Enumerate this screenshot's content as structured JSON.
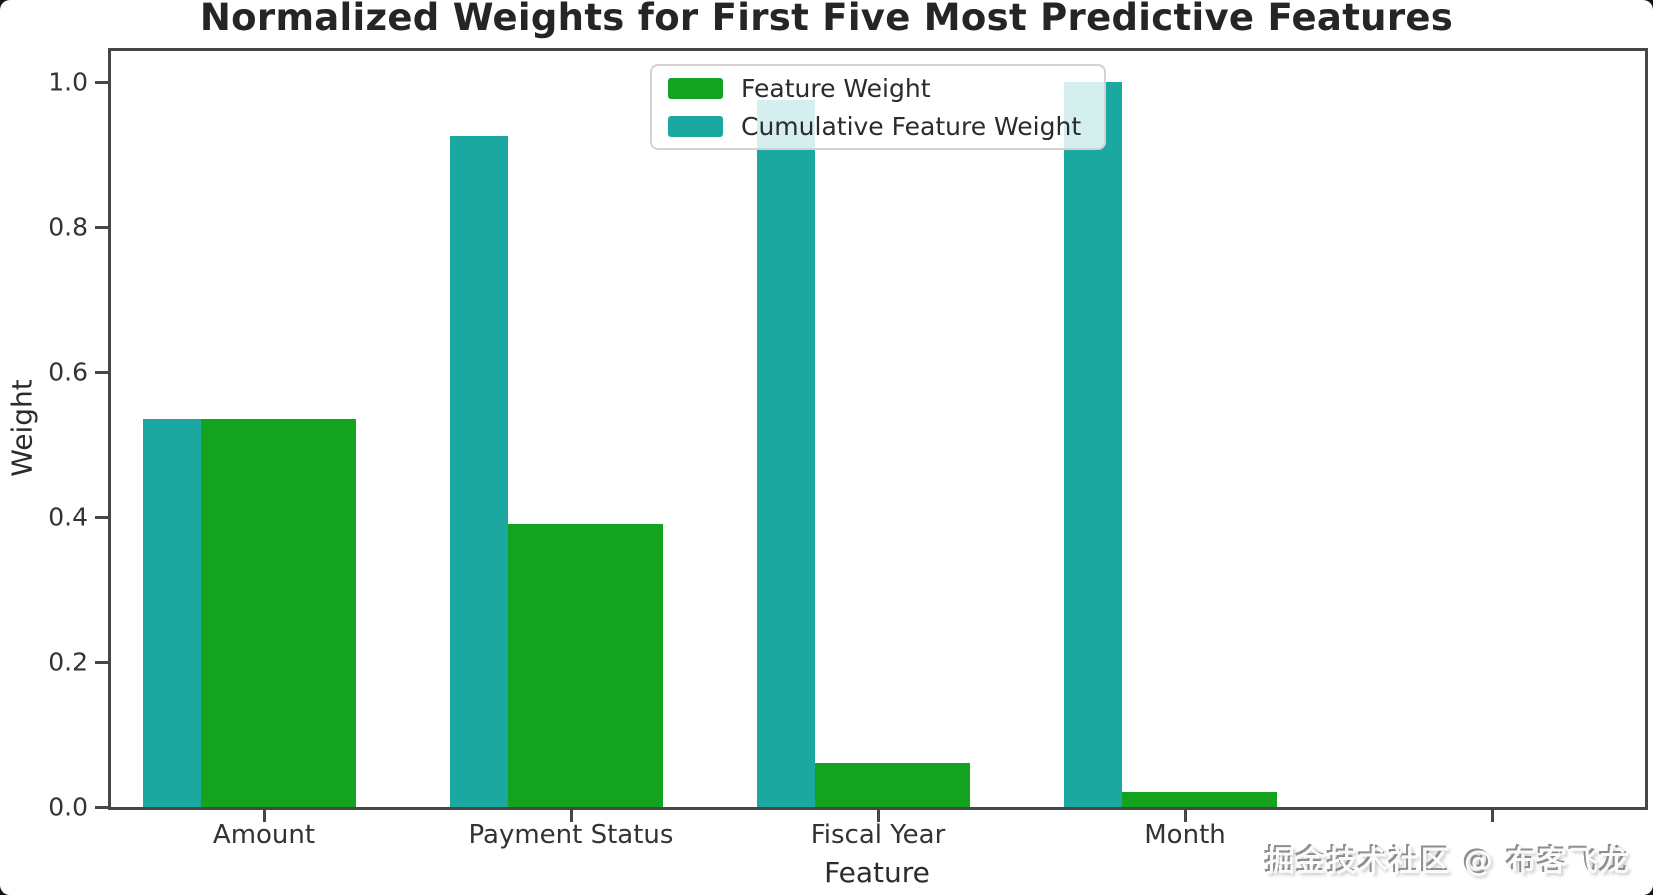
{
  "watermark": "掘金技术社区 @ 布客飞龙",
  "chart_data": {
    "type": "bar",
    "title": "Normalized Weights for First Five Most Predictive Features",
    "xlabel": "Feature",
    "ylabel": "Weight",
    "categories": [
      "Amount",
      "Payment Status",
      "Fiscal Year",
      "Month",
      ""
    ],
    "series": [
      {
        "name": "Feature Weight",
        "color": "#14a31e",
        "values": [
          0.535,
          0.39,
          0.06,
          0.02,
          0
        ]
      },
      {
        "name": "Cumulative Feature Weight",
        "color": "#1ba8a0",
        "values": [
          0.535,
          0.925,
          0.975,
          1.0,
          0
        ]
      }
    ],
    "ylim": [
      0.0,
      1.044
    ],
    "yticks": [
      0.0,
      0.2,
      0.4,
      0.6,
      0.8,
      1.0
    ],
    "ytick_labels": [
      "0.0",
      "0.2",
      "0.4",
      "0.6",
      "0.8",
      "1.0"
    ],
    "legend_position": "upper center",
    "grid": false
  }
}
